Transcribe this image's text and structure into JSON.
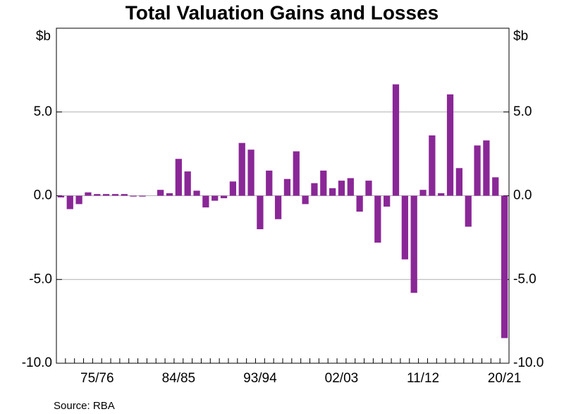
{
  "chart_data": {
    "type": "bar",
    "title": "Total Valuation Gains and Losses",
    "y_unit": "$b",
    "source": "Source: RBA",
    "color": "#8a2797",
    "grid": true,
    "categories": [
      null,
      null,
      null,
      null,
      "75/76",
      null,
      null,
      null,
      null,
      null,
      null,
      null,
      null,
      "84/85",
      null,
      null,
      null,
      null,
      null,
      null,
      null,
      null,
      "93/94",
      null,
      null,
      null,
      null,
      null,
      null,
      null,
      null,
      "02/03",
      null,
      null,
      null,
      null,
      null,
      null,
      null,
      null,
      "11/12",
      null,
      null,
      null,
      null,
      null,
      null,
      null,
      null,
      "20/21"
    ],
    "values": [
      -0.1,
      -0.8,
      -0.5,
      0.2,
      0.1,
      0.1,
      0.1,
      0.1,
      -0.05,
      -0.05,
      0,
      0.35,
      0.15,
      2.2,
      1.45,
      0.3,
      -0.7,
      -0.3,
      -0.15,
      0.85,
      3.15,
      2.75,
      -2.0,
      1.5,
      -1.4,
      1.0,
      2.65,
      -0.5,
      0.75,
      1.5,
      0.45,
      0.9,
      1.05,
      -0.95,
      0.9,
      -2.8,
      -0.65,
      6.65,
      -3.8,
      -5.8,
      0.35,
      3.6,
      0.15,
      6.05,
      1.65,
      -1.85,
      3.0,
      3.3,
      1.1,
      -8.5
    ],
    "ylim": [
      -10,
      10
    ],
    "yticks": [
      {
        "value": -10,
        "label": "-10.0"
      },
      {
        "value": -5,
        "label": "-5.0"
      },
      {
        "value": 0,
        "label": "0.0"
      },
      {
        "value": 5,
        "label": "5.0"
      }
    ]
  }
}
